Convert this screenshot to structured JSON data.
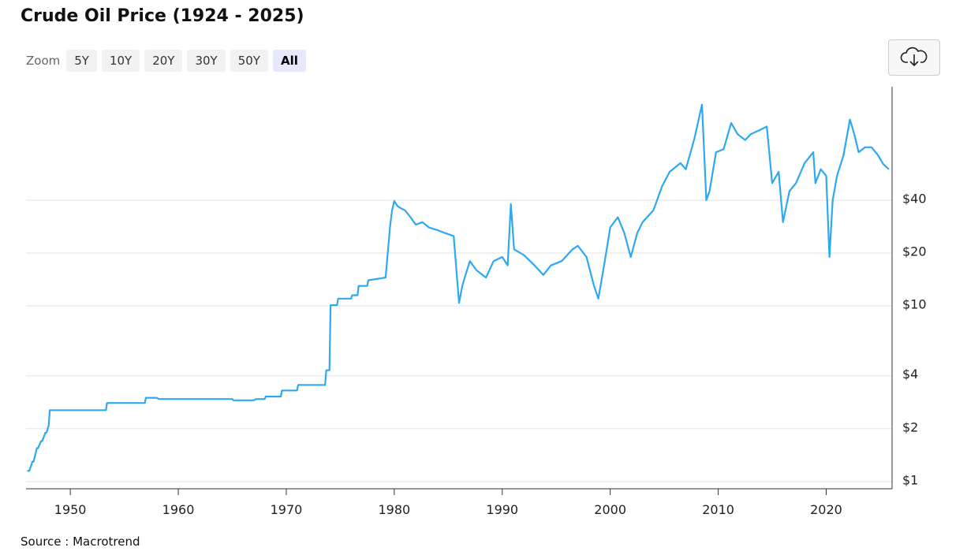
{
  "chart_data": {
    "type": "line",
    "title": "Crude Oil Price (1924 - 2025)",
    "source": "Source :  Macrotrend",
    "color": "#2ea8f0",
    "log_scale": true,
    "grid": true,
    "xlim": [
      1945.9,
      2026.1
    ],
    "xticks": [
      1950,
      1960,
      1970,
      1980,
      1990,
      2000,
      2010,
      2020
    ],
    "ylim": [
      0.91,
      177
    ],
    "yticks": [
      {
        "value": 1,
        "label": "$1"
      },
      {
        "value": 2,
        "label": "$2"
      },
      {
        "value": 4,
        "label": "$4"
      },
      {
        "value": 10,
        "label": "$10"
      },
      {
        "value": 20,
        "label": "$20"
      },
      {
        "value": 40,
        "label": "$40"
      }
    ],
    "x": [
      1946.0,
      1946.2,
      1946.5,
      1946.6,
      1946.9,
      1947.0,
      1947.3,
      1947.4,
      1947.7,
      1947.8,
      1948.0,
      1948.1,
      1953.3,
      1953.4,
      1956.9,
      1957.0,
      1958.0,
      1958.2,
      1965.0,
      1965.1,
      1967.0,
      1967.2,
      1968.0,
      1968.1,
      1969.5,
      1969.6,
      1971.0,
      1971.1,
      1973.6,
      1973.7,
      1974.0,
      1974.1,
      1974.7,
      1974.8,
      1976.0,
      1976.1,
      1976.6,
      1976.7,
      1977.5,
      1977.6,
      1979.2,
      1979.4,
      1979.6,
      1979.8,
      1980.0,
      1980.3,
      1980.6,
      1981.0,
      1981.5,
      1982.0,
      1982.6,
      1983.2,
      1984.0,
      1984.7,
      1985.5,
      1986.0,
      1986.3,
      1986.6,
      1987.0,
      1987.6,
      1988.5,
      1989.2,
      1990.0,
      1990.5,
      1990.8,
      1991.1,
      1992.0,
      1993.0,
      1993.8,
      1994.5,
      1995.5,
      1996.5,
      1997.0,
      1997.8,
      1998.5,
      1998.9,
      1999.5,
      2000.0,
      2000.7,
      2001.3,
      2001.9,
      2002.5,
      2003.0,
      2004.0,
      2004.8,
      2005.5,
      2006.5,
      2007.0,
      2007.8,
      2008.5,
      2008.9,
      2009.2,
      2009.8,
      2010.5,
      2011.2,
      2011.8,
      2012.5,
      2013.0,
      2013.8,
      2014.5,
      2015.0,
      2015.6,
      2016.0,
      2016.6,
      2017.2,
      2018.0,
      2018.8,
      2019.0,
      2019.5,
      2020.0,
      2020.3,
      2020.6,
      2021.0,
      2021.6,
      2022.2,
      2022.6,
      2023.0,
      2023.6,
      2024.2,
      2024.8,
      2025.3,
      2025.8
    ],
    "values": [
      1.15,
      1.15,
      1.3,
      1.3,
      1.55,
      1.55,
      1.7,
      1.7,
      1.9,
      1.9,
      2.1,
      2.55,
      2.55,
      2.8,
      2.8,
      3.0,
      3.0,
      2.95,
      2.95,
      2.9,
      2.9,
      2.95,
      2.95,
      3.05,
      3.05,
      3.3,
      3.3,
      3.55,
      3.55,
      4.3,
      4.3,
      10.1,
      10.1,
      11.0,
      11.0,
      11.5,
      11.5,
      13.0,
      13.0,
      14.0,
      14.5,
      20.0,
      28.0,
      35.0,
      39.5,
      37.0,
      36.0,
      35.0,
      32.0,
      29.0,
      30.0,
      28.0,
      27.0,
      26.0,
      25.0,
      10.4,
      13.0,
      15.0,
      18.0,
      16.0,
      14.5,
      18.0,
      19.0,
      17.0,
      38.0,
      21.0,
      19.5,
      17.0,
      15.0,
      17.0,
      18.0,
      21.0,
      22.0,
      19.0,
      13.0,
      11.0,
      18.0,
      28.0,
      32.0,
      26.0,
      19.0,
      26.0,
      30.0,
      35.0,
      48.0,
      58.0,
      65.0,
      60.0,
      90.0,
      140.0,
      40.0,
      45.0,
      75.0,
      78.0,
      110.0,
      95.0,
      88.0,
      95.0,
      100.0,
      105.0,
      50.0,
      58.0,
      30.0,
      45.0,
      50.0,
      65.0,
      75.0,
      50.0,
      60.0,
      55.0,
      19.0,
      40.0,
      55.0,
      72.0,
      115.0,
      95.0,
      75.0,
      80.0,
      80.0,
      72.0,
      64.0,
      60.0
    ]
  },
  "toolbar": {
    "zoom_label": "Zoom",
    "options": [
      "5Y",
      "10Y",
      "20Y",
      "30Y",
      "50Y",
      "All"
    ]
  }
}
